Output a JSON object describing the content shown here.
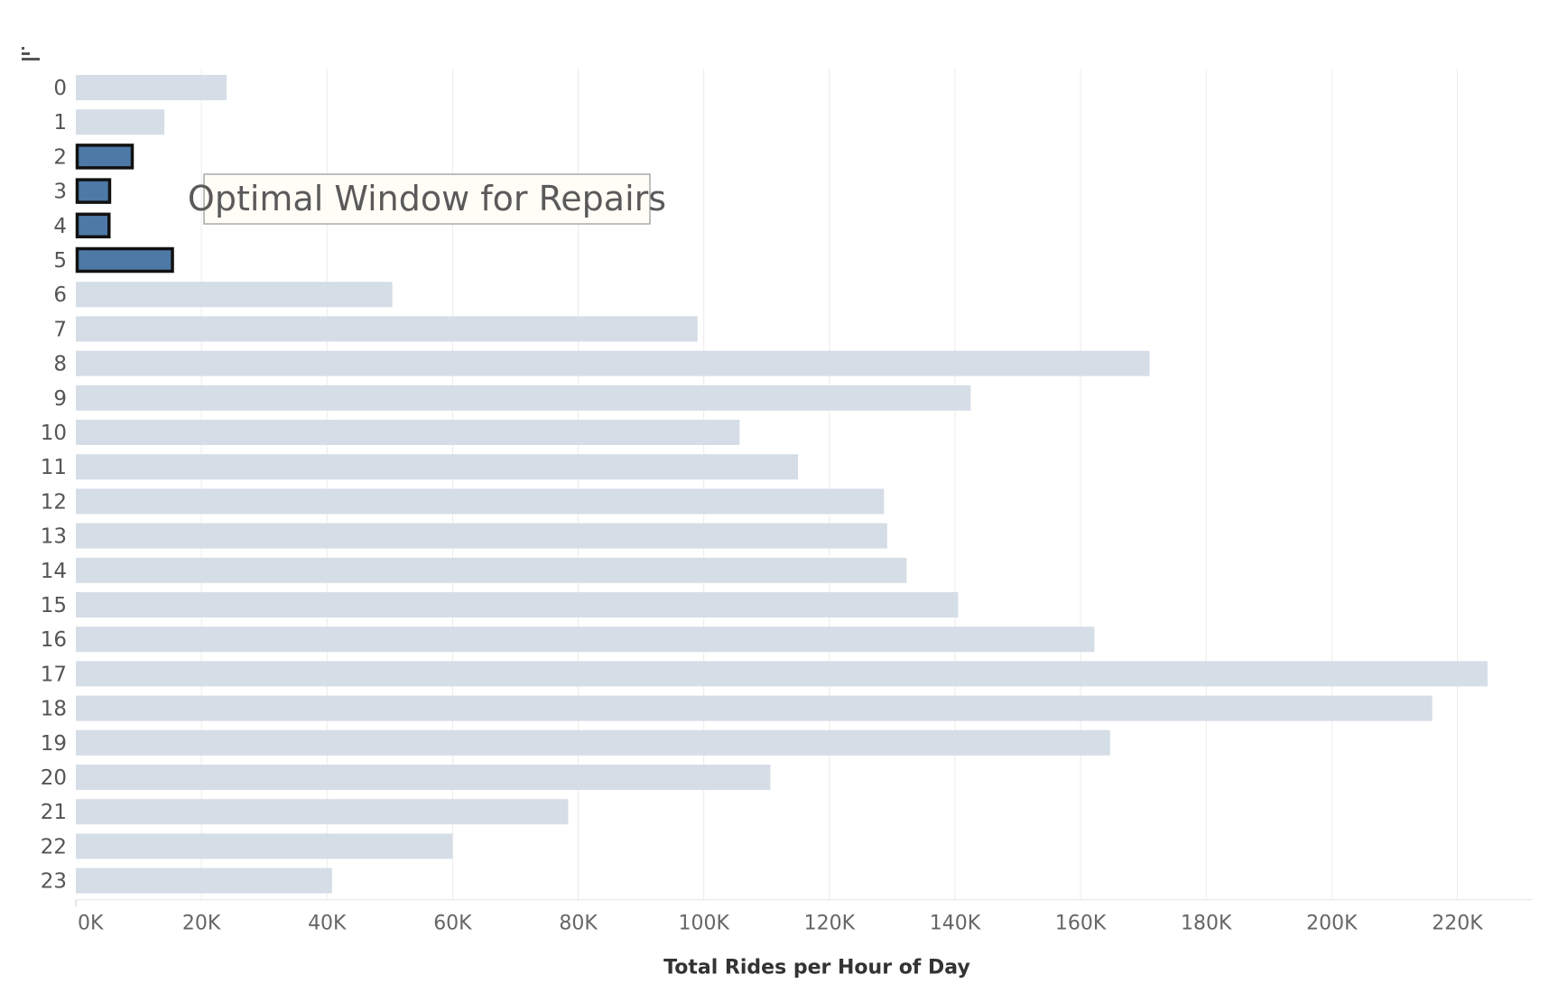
{
  "chart_data": {
    "type": "bar",
    "orientation": "horizontal",
    "categories": [
      "0",
      "1",
      "2",
      "3",
      "4",
      "5",
      "6",
      "7",
      "8",
      "9",
      "10",
      "11",
      "12",
      "13",
      "14",
      "15",
      "16",
      "17",
      "18",
      "19",
      "20",
      "21",
      "22",
      "23"
    ],
    "values": [
      24000,
      14100,
      9200,
      5600,
      5500,
      15600,
      50400,
      99000,
      171000,
      142500,
      105700,
      115000,
      128700,
      129200,
      132300,
      140500,
      162200,
      224800,
      216000,
      164700,
      110600,
      78400,
      60000,
      40800
    ],
    "highlighted": [
      "2",
      "3",
      "4",
      "5"
    ],
    "xlabel": "Total Rides per Hour of Day",
    "ylabel": "",
    "xlim": [
      0,
      232000
    ],
    "xticks": [
      0,
      20000,
      40000,
      60000,
      80000,
      100000,
      120000,
      140000,
      160000,
      180000,
      200000,
      220000
    ],
    "xtick_labels": [
      "0K",
      "20K",
      "40K",
      "60K",
      "80K",
      "100K",
      "120K",
      "140K",
      "160K",
      "180K",
      "200K",
      "220K"
    ],
    "grid": "vertical",
    "annotation": "Optimal Window for Repairs",
    "colors": {
      "bar": "#d5dde6",
      "highlight": "#4e79a7",
      "highlight_outline": "#111111",
      "grid": "#ebebeb",
      "annotation_bg": "#fffdf6",
      "annotation_border": "#a8a8a8"
    }
  },
  "toolbar": {
    "sort_icon": "sort-descending-icon"
  }
}
